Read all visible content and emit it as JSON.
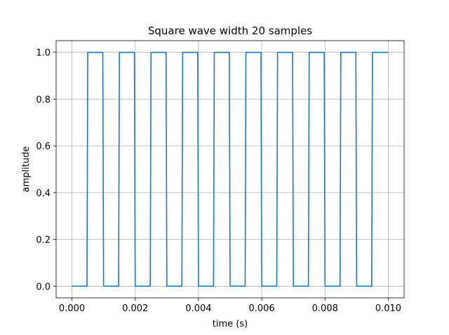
{
  "chart_data": {
    "type": "line",
    "title": "Square wave width 20 samples",
    "xlabel": "time (s)",
    "ylabel": "amplitude",
    "xlim": [
      -0.0005,
      0.0105
    ],
    "ylim": [
      -0.05,
      1.05
    ],
    "grid": true,
    "x_ticks": [
      0.0,
      0.002,
      0.004,
      0.006,
      0.008,
      0.01
    ],
    "x_tick_labels": [
      "0.000",
      "0.002",
      "0.004",
      "0.006",
      "0.008",
      "0.010"
    ],
    "y_ticks": [
      0.0,
      0.2,
      0.4,
      0.6,
      0.8,
      1.0
    ],
    "y_tick_labels": [
      "0.0",
      "0.2",
      "0.4",
      "0.6",
      "0.8",
      "1.0"
    ],
    "series": [
      {
        "color": "#1f77b4",
        "x": [
          0.0,
          0.000475,
          0.0005,
          0.000975,
          0.001,
          0.001475,
          0.0015,
          0.001975,
          0.002,
          0.002475,
          0.0025,
          0.002975,
          0.003,
          0.003475,
          0.0035,
          0.003975,
          0.004,
          0.004475,
          0.0045,
          0.004975,
          0.005,
          0.005475,
          0.0055,
          0.005975,
          0.006,
          0.006475,
          0.0065,
          0.006975,
          0.007,
          0.007475,
          0.0075,
          0.007975,
          0.008,
          0.008475,
          0.0085,
          0.008975,
          0.009,
          0.009475,
          0.0095,
          0.01
        ],
        "y": [
          0,
          0,
          1,
          1,
          0,
          0,
          1,
          1,
          0,
          0,
          1,
          1,
          0,
          0,
          1,
          1,
          0,
          0,
          1,
          1,
          0,
          0,
          1,
          1,
          0,
          0,
          1,
          1,
          0,
          0,
          1,
          1,
          0,
          0,
          1,
          1,
          0,
          0,
          1,
          1
        ]
      }
    ]
  }
}
